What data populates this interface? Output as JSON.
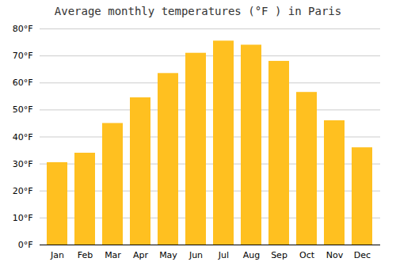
{
  "chart_data": {
    "type": "bar",
    "title": "Average monthly temperatures (°F ) in Paris",
    "categories": [
      "Jan",
      "Feb",
      "Mar",
      "Apr",
      "May",
      "Jun",
      "Jul",
      "Aug",
      "Sep",
      "Oct",
      "Nov",
      "Dec"
    ],
    "values": [
      30.5,
      34,
      45,
      54.5,
      63.5,
      71,
      75.5,
      74,
      68,
      56.5,
      46,
      36
    ],
    "color": "#FFC020",
    "ylim": [
      0,
      80
    ],
    "yticks": [
      {
        "value": 0,
        "label": "0°F"
      },
      {
        "value": 10,
        "label": "10°F"
      },
      {
        "value": 20,
        "label": "20°F"
      },
      {
        "value": 30,
        "label": "30°F"
      },
      {
        "value": 40,
        "label": "40°F"
      },
      {
        "value": 50,
        "label": "50°F"
      },
      {
        "value": 60,
        "label": "60°F"
      },
      {
        "value": 70,
        "label": "70°F"
      },
      {
        "value": 80,
        "label": "80°F"
      }
    ],
    "grid": true
  }
}
